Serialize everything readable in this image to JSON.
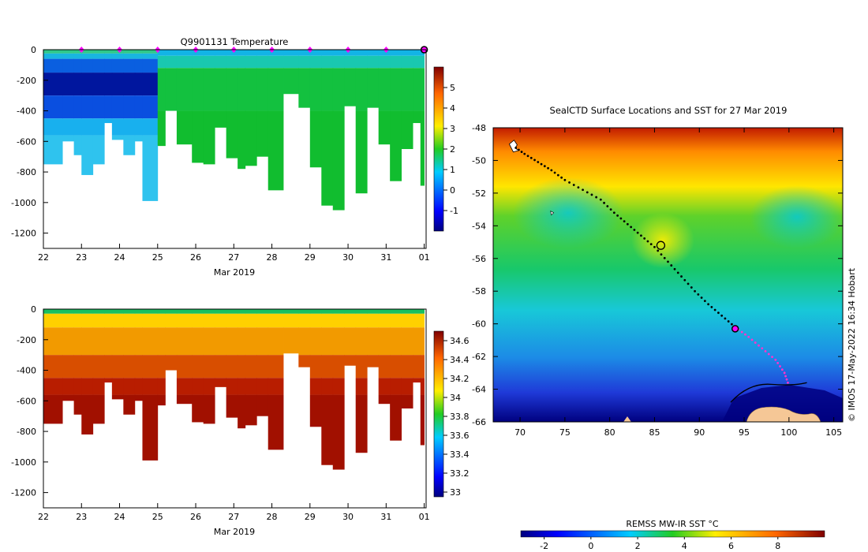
{
  "chart_data": [
    {
      "type": "heatmap",
      "title": "Q9901131  Temperature",
      "xlabel": "Mar 2019",
      "xticks": [
        "22",
        "23",
        "24",
        "25",
        "26",
        "27",
        "28",
        "29",
        "30",
        "31",
        "01"
      ],
      "ylim": [
        -1300,
        0
      ],
      "yticks": [
        "0",
        "-200",
        "-400",
        "-600",
        "-800",
        "-1000",
        "-1200"
      ],
      "colorbar": {
        "min": -2,
        "max": 6,
        "ticks": [
          "5",
          "4",
          "3",
          "2",
          "1",
          "0",
          "-1"
        ]
      },
      "profile_markers_days": [
        23,
        24,
        25,
        26,
        27,
        28,
        29,
        30,
        31
      ],
      "current_marker_day": 32,
      "profiles": [
        {
          "day": 22.0,
          "depth": -750
        },
        {
          "day": 22.5,
          "depth": -600
        },
        {
          "day": 22.8,
          "depth": -690
        },
        {
          "day": 23.0,
          "depth": -820
        },
        {
          "day": 23.3,
          "depth": -750
        },
        {
          "day": 23.6,
          "depth": -480
        },
        {
          "day": 23.8,
          "depth": -590
        },
        {
          "day": 24.1,
          "depth": -690
        },
        {
          "day": 24.4,
          "depth": -600
        },
        {
          "day": 24.6,
          "depth": -990
        },
        {
          "day": 25.0,
          "depth": -630
        },
        {
          "day": 25.2,
          "depth": -400
        },
        {
          "day": 25.5,
          "depth": -620
        },
        {
          "day": 25.9,
          "depth": -740
        },
        {
          "day": 26.2,
          "depth": -750
        },
        {
          "day": 26.5,
          "depth": -510
        },
        {
          "day": 26.8,
          "depth": -710
        },
        {
          "day": 27.1,
          "depth": -780
        },
        {
          "day": 27.3,
          "depth": -760
        },
        {
          "day": 27.6,
          "depth": -700
        },
        {
          "day": 27.9,
          "depth": -920
        },
        {
          "day": 28.3,
          "depth": -290
        },
        {
          "day": 28.7,
          "depth": -380
        },
        {
          "day": 29.0,
          "depth": -770
        },
        {
          "day": 29.3,
          "depth": -1020
        },
        {
          "day": 29.6,
          "depth": -1050
        },
        {
          "day": 29.9,
          "depth": -370
        },
        {
          "day": 30.2,
          "depth": -940
        },
        {
          "day": 30.5,
          "depth": -380
        },
        {
          "day": 30.8,
          "depth": -620
        },
        {
          "day": 31.1,
          "depth": -860
        },
        {
          "day": 31.4,
          "depth": -650
        },
        {
          "day": 31.7,
          "depth": -480
        },
        {
          "day": 31.9,
          "depth": -890
        }
      ]
    },
    {
      "type": "heatmap",
      "title": "",
      "xlabel": "Mar 2019",
      "xticks": [
        "22",
        "23",
        "24",
        "25",
        "26",
        "27",
        "28",
        "29",
        "30",
        "31",
        "01"
      ],
      "ylim": [
        -1300,
        0
      ],
      "yticks": [
        "0",
        "-200",
        "-400",
        "-600",
        "-800",
        "-1000",
        "-1200"
      ],
      "colorbar": {
        "min": 32.95,
        "max": 34.7,
        "ticks": [
          "34.6",
          "34.4",
          "34.2",
          "34",
          "33.8",
          "33.6",
          "33.4",
          "33.2",
          "33"
        ]
      }
    },
    {
      "type": "heatmap",
      "title": "SealCTD Surface Locations and SST for 27 Mar 2019",
      "xlabel": "",
      "xlim": [
        67,
        106
      ],
      "ylim": [
        -66,
        -48
      ],
      "xticks": [
        "70",
        "75",
        "80",
        "85",
        "90",
        "95",
        "100",
        "105"
      ],
      "yticks": [
        "-48",
        "-50",
        "-52",
        "-54",
        "-56",
        "-58",
        "-60",
        "-62",
        "-64",
        "-66"
      ],
      "colorbar": {
        "label": "REMSS MW-IR SST °C",
        "min": -3,
        "max": 10,
        "ticks": [
          "-2",
          "0",
          "2",
          "4",
          "6",
          "8"
        ]
      },
      "track": [
        [
          69.2,
          -49.1
        ],
        [
          70.5,
          -49.6
        ],
        [
          72,
          -50.1
        ],
        [
          73.5,
          -50.6
        ],
        [
          75,
          -51.2
        ],
        [
          77,
          -51.8
        ],
        [
          79,
          -52.4
        ],
        [
          80.5,
          -53.2
        ],
        [
          82,
          -53.9
        ],
        [
          83.5,
          -54.6
        ],
        [
          85,
          -55.3
        ],
        [
          86.5,
          -56.2
        ],
        [
          88,
          -57.1
        ],
        [
          89.5,
          -58
        ],
        [
          91,
          -58.8
        ],
        [
          92.5,
          -59.5
        ],
        [
          94,
          -60.2
        ],
        [
          95.5,
          -60.8
        ],
        [
          97,
          -61.5
        ],
        [
          98.5,
          -62.2
        ],
        [
          99.5,
          -63
        ],
        [
          100,
          -63.8
        ]
      ],
      "current_position": [
        94,
        -60.3
      ]
    }
  ],
  "credit": "© IMOS 17-May-2022 16:34 Hobart"
}
